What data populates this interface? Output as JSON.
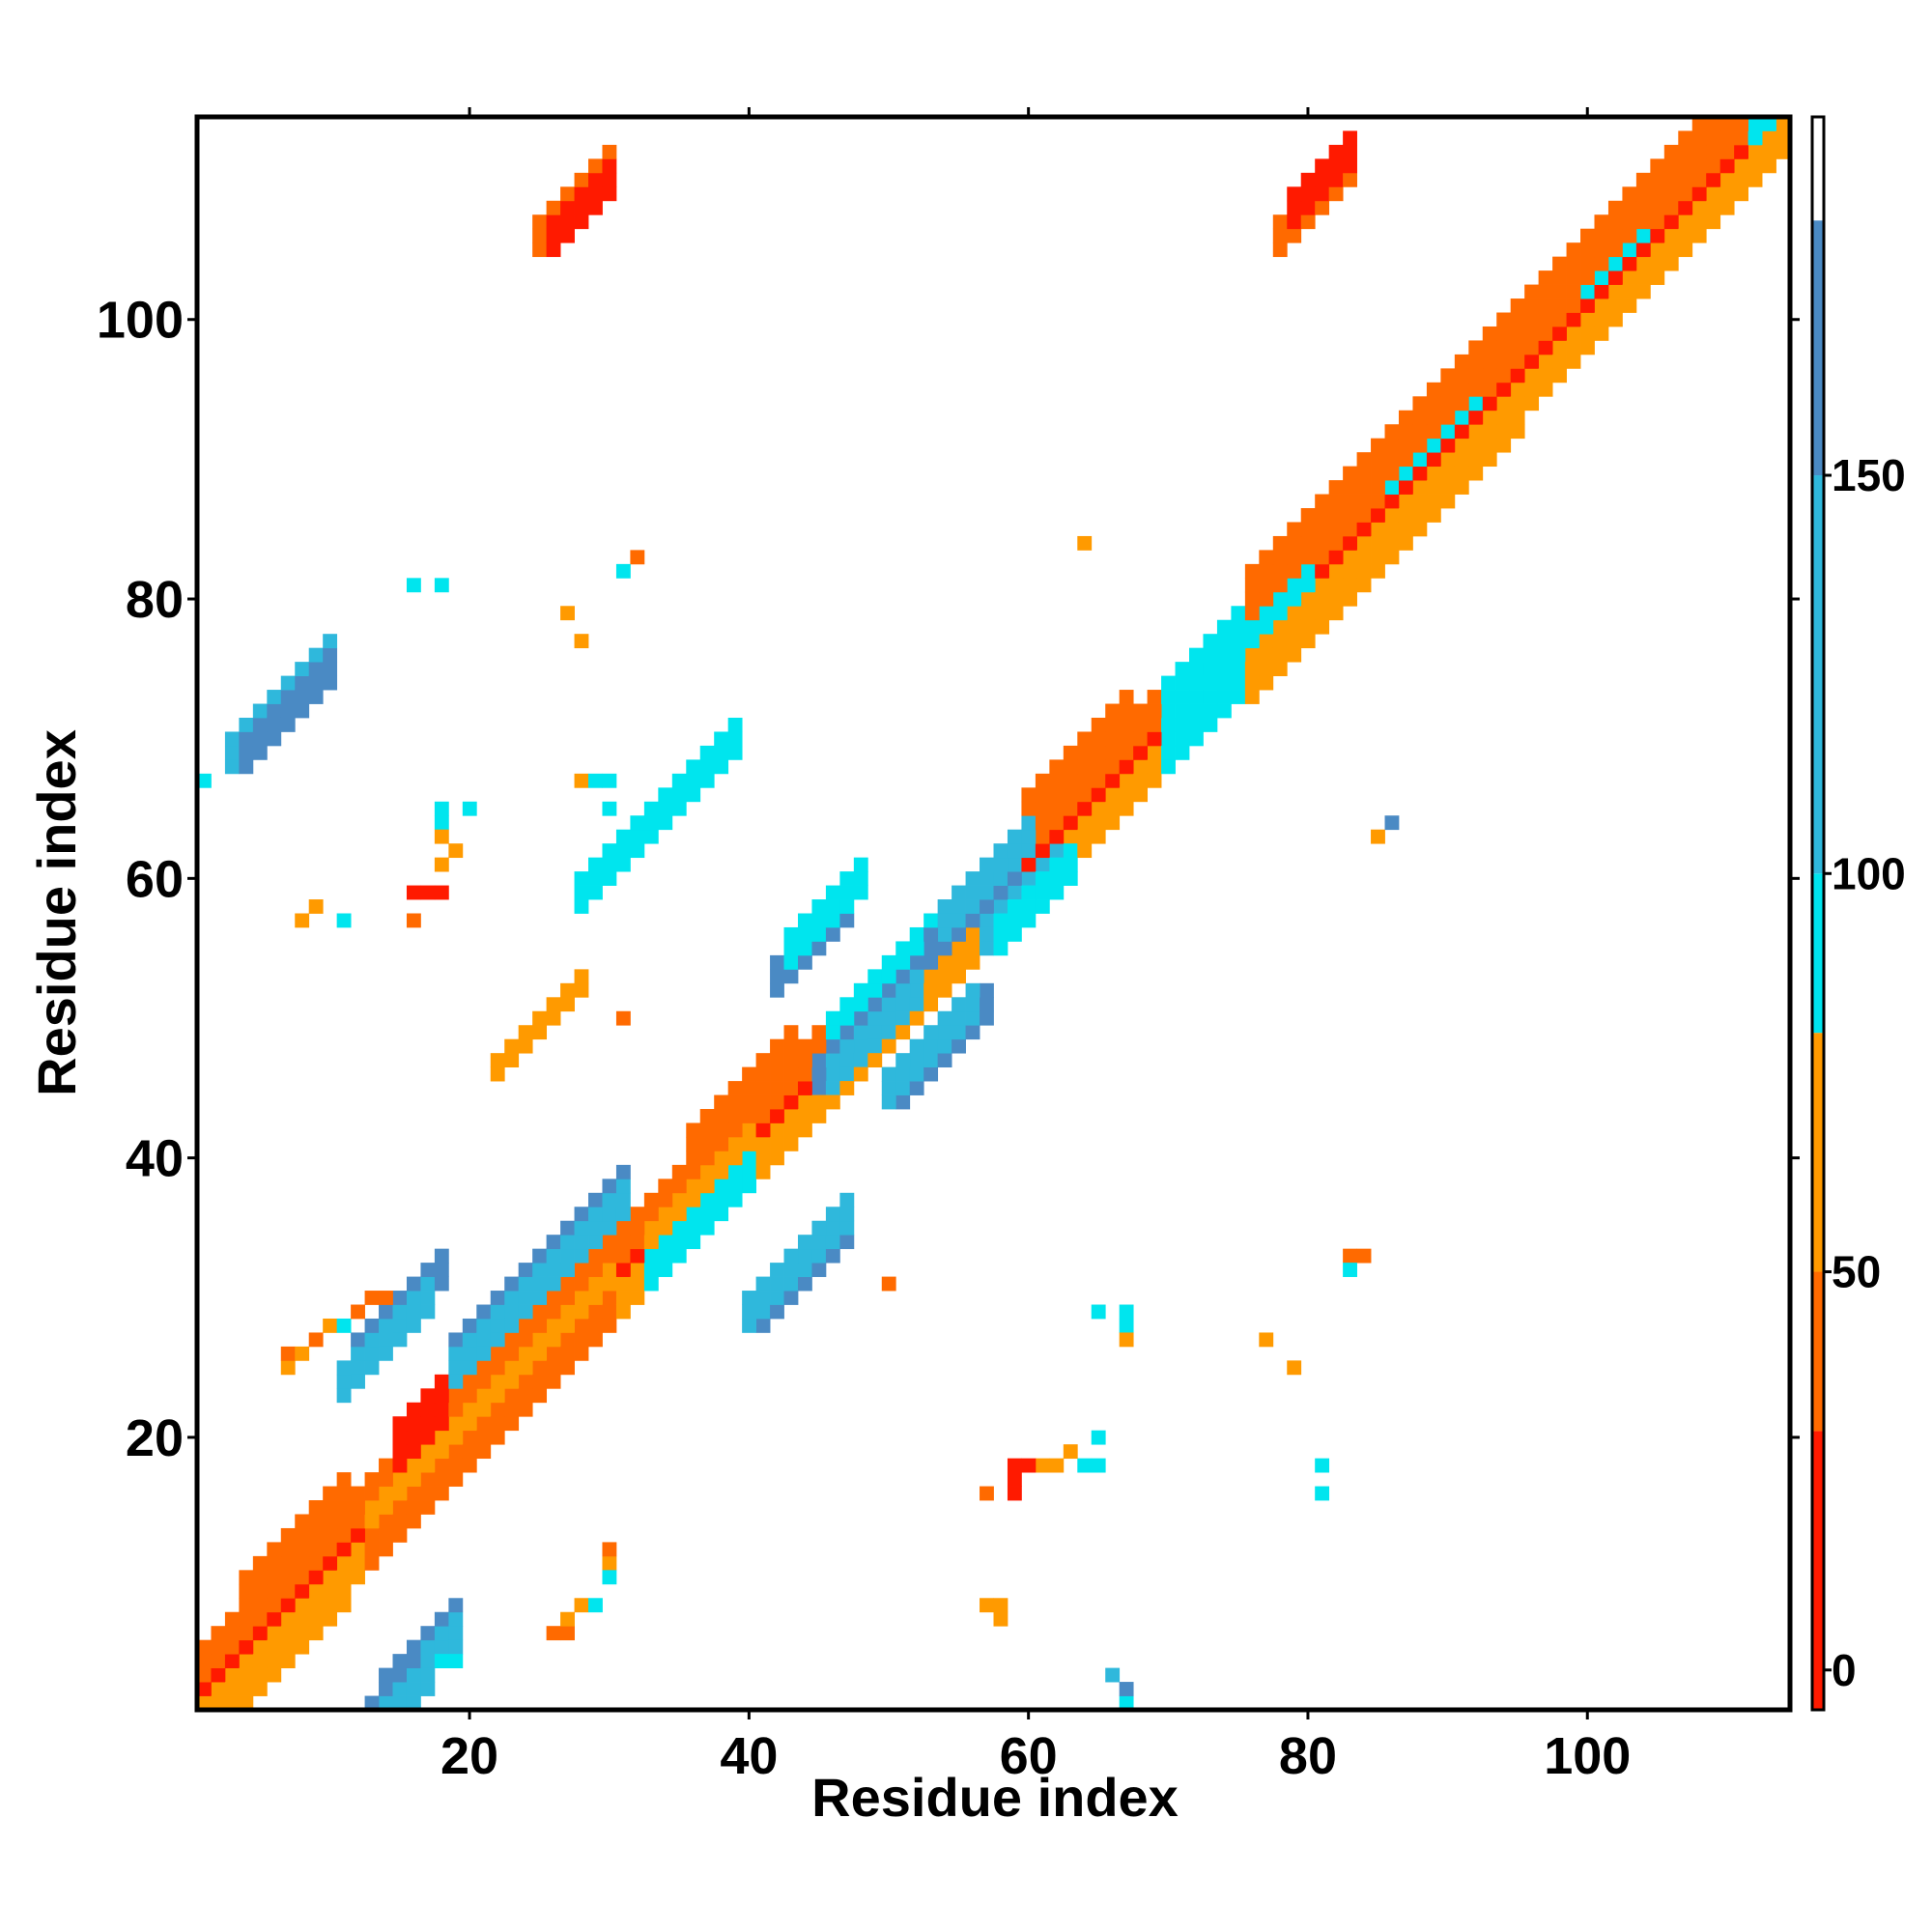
{
  "chart_data": {
    "type": "heatmap",
    "title": "",
    "xlabel": "Residue index",
    "ylabel": "Residue index",
    "xlim": [
      0.5,
      114.5
    ],
    "ylim": [
      0.5,
      114.5
    ],
    "x_ticks": [
      20,
      40,
      60,
      80,
      100
    ],
    "y_ticks": [
      20,
      40,
      60,
      80,
      100
    ],
    "grid": false,
    "colorbar": {
      "range": [
        -5,
        195
      ],
      "ticks": [
        0,
        50,
        100,
        150
      ],
      "bands": [
        {
          "from": -5,
          "to": 30,
          "color": "#ff1a00"
        },
        {
          "from": 30,
          "to": 50,
          "color": "#ff6a00"
        },
        {
          "from": 50,
          "to": 80,
          "color": "#ff9a00"
        },
        {
          "from": 80,
          "to": 100,
          "color": "#00e5ee"
        },
        {
          "from": 100,
          "to": 150,
          "color": "#2fb8dc"
        },
        {
          "from": 150,
          "to": 182,
          "color": "#4a8ac4"
        },
        {
          "from": 182,
          "to": 195,
          "color": "#ffffff"
        }
      ]
    },
    "palette": {
      "red": "#ff1a00",
      "orange_red": "#ff6a00",
      "orange": "#ff9a00",
      "cyan": "#00e5ee",
      "sky_blue": "#2fb8dc",
      "steel_blue": "#4a8ac4"
    },
    "cell_rects": [
      [
        1,
        114,
        0,
        1,
        "orange_red"
      ],
      [
        1,
        114,
        0,
        1,
        "orange"
      ],
      [
        1,
        114,
        1,
        2,
        "red"
      ],
      [
        1,
        114,
        -1,
        2,
        "orange_red"
      ],
      [
        1,
        114,
        2,
        3,
        "orange_red"
      ],
      [
        1,
        114,
        -2,
        3,
        "orange"
      ],
      [
        13,
        30,
        -1,
        1,
        "cyan"
      ],
      [
        13,
        30,
        1,
        2,
        "orange"
      ],
      [
        13,
        30,
        -2,
        3,
        "orange_red"
      ],
      [
        33,
        40,
        -2,
        3,
        "cyan"
      ],
      [
        33,
        40,
        1,
        2,
        "orange"
      ],
      [
        46,
        56,
        1,
        2,
        "cyan"
      ],
      [
        46,
        56,
        2,
        3,
        "cyan"
      ],
      [
        46,
        56,
        -1,
        1,
        "orange"
      ],
      [
        70,
        80,
        1,
        2,
        "cyan"
      ],
      [
        70,
        80,
        2,
        3,
        "cyan"
      ],
      [
        70,
        80,
        -2,
        3,
        "cyan"
      ],
      [
        86,
        92,
        2,
        3,
        "cyan"
      ],
      [
        100,
        104,
        2,
        3,
        "cyan"
      ],
      [
        112,
        114,
        1,
        2,
        "cyan"
      ],
      [
        4,
        11,
        3,
        4,
        "orange_red"
      ],
      [
        4,
        11,
        -3,
        4,
        "orange"
      ],
      [
        15,
        18,
        3,
        4,
        "red"
      ],
      [
        26,
        31,
        3,
        4,
        "orange_red"
      ],
      [
        36,
        43,
        3,
        4,
        "orange_red"
      ],
      [
        60,
        67,
        3,
        4,
        "orange_red"
      ],
      [
        76,
        95,
        3,
        4,
        "orange_red"
      ],
      [
        76,
        95,
        -3,
        4,
        "orange"
      ],
      [
        95,
        109,
        3,
        4,
        "orange_red"
      ],
      [
        14,
        19,
        -13,
        3,
        "steel_blue"
      ],
      [
        14,
        19,
        -14,
        3,
        "sky_blue"
      ],
      [
        19,
        31,
        6,
        3,
        "steel_blue"
      ],
      [
        19,
        31,
        5,
        3,
        "sky_blue"
      ],
      [
        4,
        13,
        -17,
        3,
        "sky_blue"
      ],
      [
        4,
        13,
        -18,
        3,
        "steel_blue"
      ],
      [
        28,
        39,
        30,
        3,
        "cyan"
      ],
      [
        22,
        28,
        24,
        2,
        "orange"
      ],
      [
        12,
        18,
        13,
        3,
        "steel_blue"
      ],
      [
        11,
        17,
        12,
        3,
        "sky_blue"
      ],
      [
        9,
        16,
        -14,
        3,
        "steel_blue"
      ],
      [
        10,
        17,
        -15,
        3,
        "sky_blue"
      ],
      [
        41,
        47,
        -13,
        3,
        "steel_blue"
      ],
      [
        40,
        47,
        -12,
        3,
        "sky_blue"
      ],
      [
        45,
        52,
        0,
        3,
        "steel_blue"
      ],
      [
        46,
        52,
        -1,
        3,
        "sky_blue"
      ],
      [
        42,
        47,
        10,
        3,
        "steel_blue"
      ],
      [
        43,
        48,
        11,
        3,
        "cyan"
      ],
      [
        51,
        57,
        -7,
        3,
        "steel_blue"
      ],
      [
        50,
        56,
        -6,
        3,
        "sky_blue"
      ],
      [
        53,
        59,
        1,
        3,
        "steel_blue"
      ],
      [
        54,
        60,
        2,
        3,
        "sky_blue"
      ],
      [
        57,
        62,
        -2,
        3,
        "sky_blue"
      ],
      [
        58,
        63,
        -3,
        3,
        "cyan"
      ],
      [
        3,
        10,
        65,
        3,
        "sky_blue"
      ],
      [
        4,
        10,
        64,
        3,
        "steel_blue"
      ],
      [
        58,
        69,
        67,
        3,
        "sky_blue"
      ],
      [
        58,
        69,
        66,
        3,
        "steel_blue"
      ],
      [
        79,
        84,
        67,
        3,
        "sky_blue"
      ],
      [
        78,
        85,
        68,
        3,
        "steel_blue"
      ],
      [
        25,
        30,
        80,
        3,
        "orange_red"
      ],
      [
        26,
        30,
        79,
        3,
        "red"
      ],
      [
        64,
        68,
        84,
        3,
        "sky_blue"
      ],
      [
        63,
        68,
        85,
        3,
        "steel_blue"
      ],
      [
        78,
        83,
        27,
        3,
        "orange_red"
      ],
      [
        79,
        83,
        28,
        3,
        "red"
      ]
    ],
    "cells": [
      [
        16,
        81,
        "cyan"
      ],
      [
        18,
        81,
        "cyan"
      ],
      [
        18,
        65,
        "cyan"
      ],
      [
        20,
        65,
        "cyan"
      ],
      [
        18,
        64,
        "cyan"
      ],
      [
        18,
        63,
        "orange"
      ],
      [
        19,
        62,
        "orange"
      ],
      [
        18,
        61,
        "orange"
      ],
      [
        16,
        59,
        "red"
      ],
      [
        17,
        59,
        "red"
      ],
      [
        18,
        59,
        "red"
      ],
      [
        16,
        57,
        "orange_red"
      ],
      [
        9,
        58,
        "orange"
      ],
      [
        8,
        57,
        "orange"
      ],
      [
        11,
        57,
        "cyan"
      ],
      [
        28,
        67,
        "orange"
      ],
      [
        29,
        67,
        "cyan"
      ],
      [
        30,
        67,
        "cyan"
      ],
      [
        30,
        65,
        "cyan"
      ],
      [
        28,
        77,
        "orange"
      ],
      [
        27,
        79,
        "orange"
      ],
      [
        32,
        83,
        "orange_red"
      ],
      [
        31,
        82,
        "cyan"
      ],
      [
        31,
        50,
        "orange_red"
      ],
      [
        50,
        31,
        "orange_red"
      ],
      [
        65,
        29,
        "cyan"
      ],
      [
        67,
        29,
        "cyan"
      ],
      [
        67,
        28,
        "cyan"
      ],
      [
        67,
        27,
        "orange"
      ],
      [
        65,
        20,
        "cyan"
      ],
      [
        65,
        18,
        "cyan"
      ],
      [
        64,
        18,
        "cyan"
      ],
      [
        63,
        19,
        "orange"
      ],
      [
        62,
        18,
        "orange"
      ],
      [
        61,
        18,
        "orange"
      ],
      [
        60,
        18,
        "red"
      ],
      [
        59,
        18,
        "red"
      ],
      [
        59,
        17,
        "red"
      ],
      [
        59,
        16,
        "red"
      ],
      [
        57,
        16,
        "orange_red"
      ],
      [
        81,
        18,
        "cyan"
      ],
      [
        81,
        16,
        "cyan"
      ],
      [
        84,
        33,
        "orange_red"
      ],
      [
        83,
        33,
        "orange_red"
      ],
      [
        83,
        32,
        "cyan"
      ],
      [
        79,
        25,
        "orange"
      ],
      [
        77,
        27,
        "orange"
      ],
      [
        57,
        8,
        "orange"
      ],
      [
        58,
        8,
        "orange"
      ],
      [
        58,
        7,
        "orange"
      ],
      [
        67,
        1,
        "cyan"
      ],
      [
        7,
        25,
        "orange"
      ],
      [
        7,
        26,
        "orange_red"
      ],
      [
        8,
        26,
        "orange"
      ],
      [
        9,
        27,
        "orange_red"
      ],
      [
        10,
        28,
        "orange"
      ],
      [
        11,
        28,
        "cyan"
      ],
      [
        12,
        29,
        "orange_red"
      ],
      [
        13,
        30,
        "orange_red"
      ],
      [
        14,
        30,
        "orange_red"
      ],
      [
        26,
        6,
        "orange_red"
      ],
      [
        27,
        6,
        "orange_red"
      ],
      [
        27,
        7,
        "orange"
      ],
      [
        28,
        8,
        "orange"
      ],
      [
        29,
        8,
        "cyan"
      ],
      [
        30,
        11,
        "orange"
      ],
      [
        30,
        12,
        "orange_red"
      ],
      [
        30,
        10,
        "cyan"
      ],
      [
        1,
        67,
        "cyan"
      ],
      [
        64,
        84,
        "orange"
      ],
      [
        85,
        63,
        "orange"
      ],
      [
        86,
        64,
        "steel_blue"
      ],
      [
        67,
        2,
        "steel_blue"
      ],
      [
        18,
        4,
        "cyan"
      ],
      [
        19,
        4,
        "cyan"
      ],
      [
        66,
        3,
        "sky_blue"
      ]
    ]
  }
}
